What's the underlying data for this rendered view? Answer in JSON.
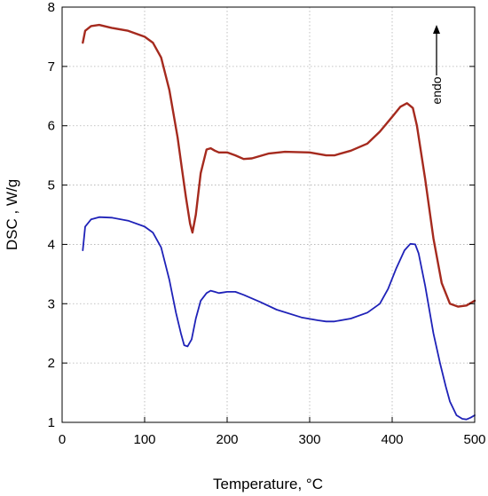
{
  "chart_data": {
    "type": "line",
    "title": "",
    "xlabel": "Temperature, °C",
    "ylabel": "DSC , W/g",
    "xlim": [
      0,
      500
    ],
    "ylim": [
      1,
      8
    ],
    "x_ticks": [
      0,
      100,
      200,
      300,
      400,
      500
    ],
    "y_ticks": [
      1,
      2,
      3,
      4,
      5,
      6,
      7,
      8
    ],
    "grid": true,
    "annotation": "endo",
    "series": [
      {
        "color": "#a52a1e",
        "x": [
          25,
          28,
          35,
          45,
          60,
          80,
          100,
          110,
          120,
          130,
          140,
          145,
          150,
          155,
          158,
          162,
          168,
          175,
          180,
          185,
          190,
          200,
          210,
          220,
          230,
          250,
          270,
          300,
          320,
          330,
          350,
          370,
          385,
          400,
          410,
          418,
          425,
          430,
          440,
          450,
          460,
          470,
          480,
          490,
          500
        ],
        "y": [
          7.4,
          7.6,
          7.68,
          7.7,
          7.65,
          7.6,
          7.5,
          7.4,
          7.15,
          6.6,
          5.8,
          5.3,
          4.8,
          4.35,
          4.2,
          4.5,
          5.2,
          5.6,
          5.62,
          5.58,
          5.55,
          5.55,
          5.5,
          5.44,
          5.45,
          5.53,
          5.56,
          5.55,
          5.5,
          5.5,
          5.58,
          5.7,
          5.9,
          6.15,
          6.32,
          6.38,
          6.3,
          6.0,
          5.1,
          4.1,
          3.35,
          3.0,
          2.95,
          2.97,
          3.05
        ]
      },
      {
        "color": "#1f22b8",
        "x": [
          25,
          28,
          35,
          45,
          60,
          80,
          100,
          110,
          120,
          130,
          138,
          144,
          148,
          152,
          157,
          162,
          168,
          175,
          180,
          185,
          190,
          200,
          210,
          220,
          240,
          260,
          290,
          310,
          320,
          330,
          350,
          370,
          385,
          395,
          405,
          415,
          422,
          428,
          432,
          440,
          450,
          458,
          465,
          470,
          478,
          485,
          490,
          495,
          500
        ],
        "y": [
          3.9,
          4.3,
          4.42,
          4.46,
          4.45,
          4.4,
          4.3,
          4.2,
          3.95,
          3.4,
          2.85,
          2.5,
          2.3,
          2.28,
          2.4,
          2.75,
          3.05,
          3.18,
          3.22,
          3.2,
          3.18,
          3.2,
          3.2,
          3.15,
          3.03,
          2.9,
          2.77,
          2.72,
          2.7,
          2.7,
          2.75,
          2.85,
          3.0,
          3.25,
          3.6,
          3.9,
          4.01,
          4.0,
          3.85,
          3.3,
          2.5,
          2.0,
          1.6,
          1.35,
          1.12,
          1.06,
          1.05,
          1.08,
          1.12
        ]
      }
    ]
  }
}
